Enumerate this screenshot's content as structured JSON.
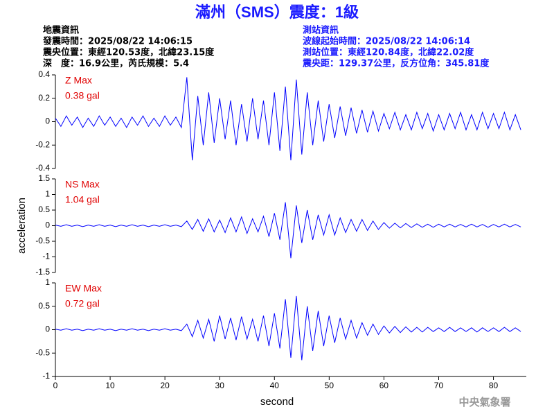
{
  "header": {
    "title": "滿州（SMS）震度：1級",
    "left": [
      "地震資訊",
      "發震時間：2025/08/22 14:06:15",
      "震央位置：東經120.53度，北緯23.15度",
      "深　度：16.9公里，芮氏規模：5.4"
    ],
    "right": [
      "測站資訊",
      "波線起始時間：2025/08/22 14:06:14",
      "測站位置：東經120.84度，北緯22.02度",
      "震央距：129.37公里，反方位角：345.81度"
    ]
  },
  "footer": {
    "agency": "中央氣象署"
  },
  "chart_data": [
    {
      "type": "line",
      "annotation": [
        "Z Max",
        "0.38 gal"
      ],
      "color": "#0000ff",
      "xlim": [
        0,
        86
      ],
      "ylim": [
        -0.4,
        0.4
      ],
      "yticks": [
        -0.4,
        -0.2,
        0,
        0.2,
        0.4
      ],
      "x": [
        0,
        1,
        2,
        3,
        4,
        5,
        6,
        7,
        8,
        9,
        10,
        11,
        12,
        13,
        14,
        15,
        16,
        17,
        18,
        19,
        20,
        21,
        22,
        23,
        24,
        25,
        26,
        27,
        28,
        29,
        30,
        31,
        32,
        33,
        34,
        35,
        36,
        37,
        38,
        39,
        40,
        41,
        42,
        43,
        44,
        45,
        46,
        47,
        48,
        49,
        50,
        51,
        52,
        53,
        54,
        55,
        56,
        57,
        58,
        59,
        60,
        61,
        62,
        63,
        64,
        65,
        66,
        67,
        68,
        69,
        70,
        71,
        72,
        73,
        74,
        75,
        76,
        77,
        78,
        79,
        80,
        81,
        82,
        83,
        84,
        85
      ],
      "values": [
        0.03,
        -0.04,
        0.05,
        -0.03,
        0.04,
        -0.05,
        0.03,
        -0.04,
        0.05,
        -0.03,
        0.04,
        -0.04,
        0.03,
        -0.05,
        0.04,
        -0.03,
        0.05,
        -0.04,
        0.03,
        -0.04,
        0.05,
        -0.03,
        0.04,
        -0.05,
        0.38,
        -0.33,
        0.22,
        -0.2,
        0.25,
        -0.18,
        0.2,
        -0.15,
        0.18,
        -0.2,
        0.15,
        -0.17,
        0.2,
        -0.15,
        0.18,
        -0.2,
        0.25,
        -0.25,
        0.3,
        -0.33,
        0.36,
        -0.28,
        0.25,
        -0.2,
        0.18,
        -0.17,
        0.15,
        -0.14,
        0.13,
        -0.12,
        0.12,
        -0.1,
        0.1,
        -0.09,
        0.09,
        -0.08,
        0.07,
        -0.06,
        0.08,
        -0.07,
        0.06,
        -0.07,
        0.08,
        -0.06,
        0.07,
        -0.08,
        0.06,
        -0.07,
        0.07,
        -0.06,
        0.08,
        -0.07,
        0.06,
        -0.07,
        0.08,
        -0.06,
        0.07,
        -0.06,
        0.08,
        -0.07,
        0.06,
        -0.07
      ]
    },
    {
      "type": "line",
      "annotation": [
        "NS Max",
        "1.04 gal"
      ],
      "color": "#0000ff",
      "ylabel": "acceleration",
      "xlim": [
        0,
        86
      ],
      "ylim": [
        -1.5,
        1.5
      ],
      "yticks": [
        -1.5,
        -1,
        -0.5,
        0,
        0.5,
        1,
        1.5
      ],
      "x": [
        0,
        1,
        2,
        3,
        4,
        5,
        6,
        7,
        8,
        9,
        10,
        11,
        12,
        13,
        14,
        15,
        16,
        17,
        18,
        19,
        20,
        21,
        22,
        23,
        24,
        25,
        26,
        27,
        28,
        29,
        30,
        31,
        32,
        33,
        34,
        35,
        36,
        37,
        38,
        39,
        40,
        41,
        42,
        43,
        44,
        45,
        46,
        47,
        48,
        49,
        50,
        51,
        52,
        53,
        54,
        55,
        56,
        57,
        58,
        59,
        60,
        61,
        62,
        63,
        64,
        65,
        66,
        67,
        68,
        69,
        70,
        71,
        72,
        73,
        74,
        75,
        76,
        77,
        78,
        79,
        80,
        81,
        82,
        83,
        84,
        85
      ],
      "values": [
        0.02,
        -0.02,
        0.03,
        -0.02,
        0.02,
        -0.03,
        0.02,
        -0.02,
        0.03,
        -0.02,
        0.02,
        -0.03,
        0.02,
        -0.02,
        0.03,
        -0.02,
        0.02,
        -0.03,
        0.02,
        -0.02,
        0.03,
        -0.02,
        0.02,
        -0.03,
        0.15,
        -0.12,
        0.2,
        -0.18,
        0.22,
        -0.2,
        0.18,
        -0.22,
        0.25,
        -0.2,
        0.28,
        -0.25,
        0.22,
        -0.2,
        0.3,
        -0.35,
        0.4,
        -0.45,
        0.75,
        -1.04,
        0.65,
        -0.55,
        0.5,
        -0.45,
        0.35,
        -0.3,
        0.35,
        -0.3,
        0.25,
        -0.22,
        0.2,
        -0.18,
        0.2,
        -0.15,
        0.15,
        -0.12,
        0.1,
        -0.08,
        0.08,
        -0.07,
        0.07,
        -0.06,
        0.06,
        -0.05,
        0.05,
        -0.05,
        0.05,
        -0.04,
        0.05,
        -0.04,
        0.04,
        -0.04,
        0.05,
        -0.04,
        0.04,
        -0.05,
        0.04,
        -0.04,
        0.05,
        -0.04,
        0.04,
        -0.04
      ]
    },
    {
      "type": "line",
      "annotation": [
        "EW Max",
        "0.72 gal"
      ],
      "color": "#0000ff",
      "xlabel": "second",
      "xlim": [
        0,
        86
      ],
      "ylim": [
        -1,
        1
      ],
      "yticks": [
        -1,
        -0.5,
        0,
        0.5,
        1
      ],
      "xticks": [
        0,
        10,
        20,
        30,
        40,
        50,
        60,
        70,
        80
      ],
      "x": [
        0,
        1,
        2,
        3,
        4,
        5,
        6,
        7,
        8,
        9,
        10,
        11,
        12,
        13,
        14,
        15,
        16,
        17,
        18,
        19,
        20,
        21,
        22,
        23,
        24,
        25,
        26,
        27,
        28,
        29,
        30,
        31,
        32,
        33,
        34,
        35,
        36,
        37,
        38,
        39,
        40,
        41,
        42,
        43,
        44,
        45,
        46,
        47,
        48,
        49,
        50,
        51,
        52,
        53,
        54,
        55,
        56,
        57,
        58,
        59,
        60,
        61,
        62,
        63,
        64,
        65,
        66,
        67,
        68,
        69,
        70,
        71,
        72,
        73,
        74,
        75,
        76,
        77,
        78,
        79,
        80,
        81,
        82,
        83,
        84,
        85
      ],
      "values": [
        0.01,
        -0.01,
        0.02,
        -0.01,
        0.01,
        -0.02,
        0.01,
        -0.01,
        0.02,
        -0.01,
        0.01,
        -0.02,
        0.01,
        -0.01,
        0.02,
        -0.01,
        0.01,
        -0.02,
        0.01,
        -0.01,
        0.02,
        -0.01,
        0.01,
        -0.02,
        0.12,
        -0.15,
        0.2,
        -0.18,
        0.22,
        -0.25,
        0.3,
        -0.2,
        0.25,
        -0.22,
        0.28,
        -0.2,
        0.22,
        -0.25,
        0.3,
        -0.35,
        0.35,
        -0.4,
        0.65,
        -0.6,
        0.72,
        -0.65,
        0.5,
        -0.45,
        0.4,
        -0.35,
        0.3,
        -0.28,
        0.25,
        -0.2,
        0.2,
        -0.18,
        0.15,
        -0.12,
        0.12,
        -0.1,
        0.08,
        -0.07,
        0.07,
        -0.06,
        0.06,
        -0.05,
        0.05,
        -0.05,
        0.05,
        -0.04,
        0.04,
        -0.04,
        0.05,
        -0.04,
        0.04,
        -0.04,
        0.04,
        -0.05,
        0.04,
        -0.04,
        0.04,
        -0.04,
        0.05,
        -0.04,
        0.04,
        -0.04
      ]
    }
  ]
}
